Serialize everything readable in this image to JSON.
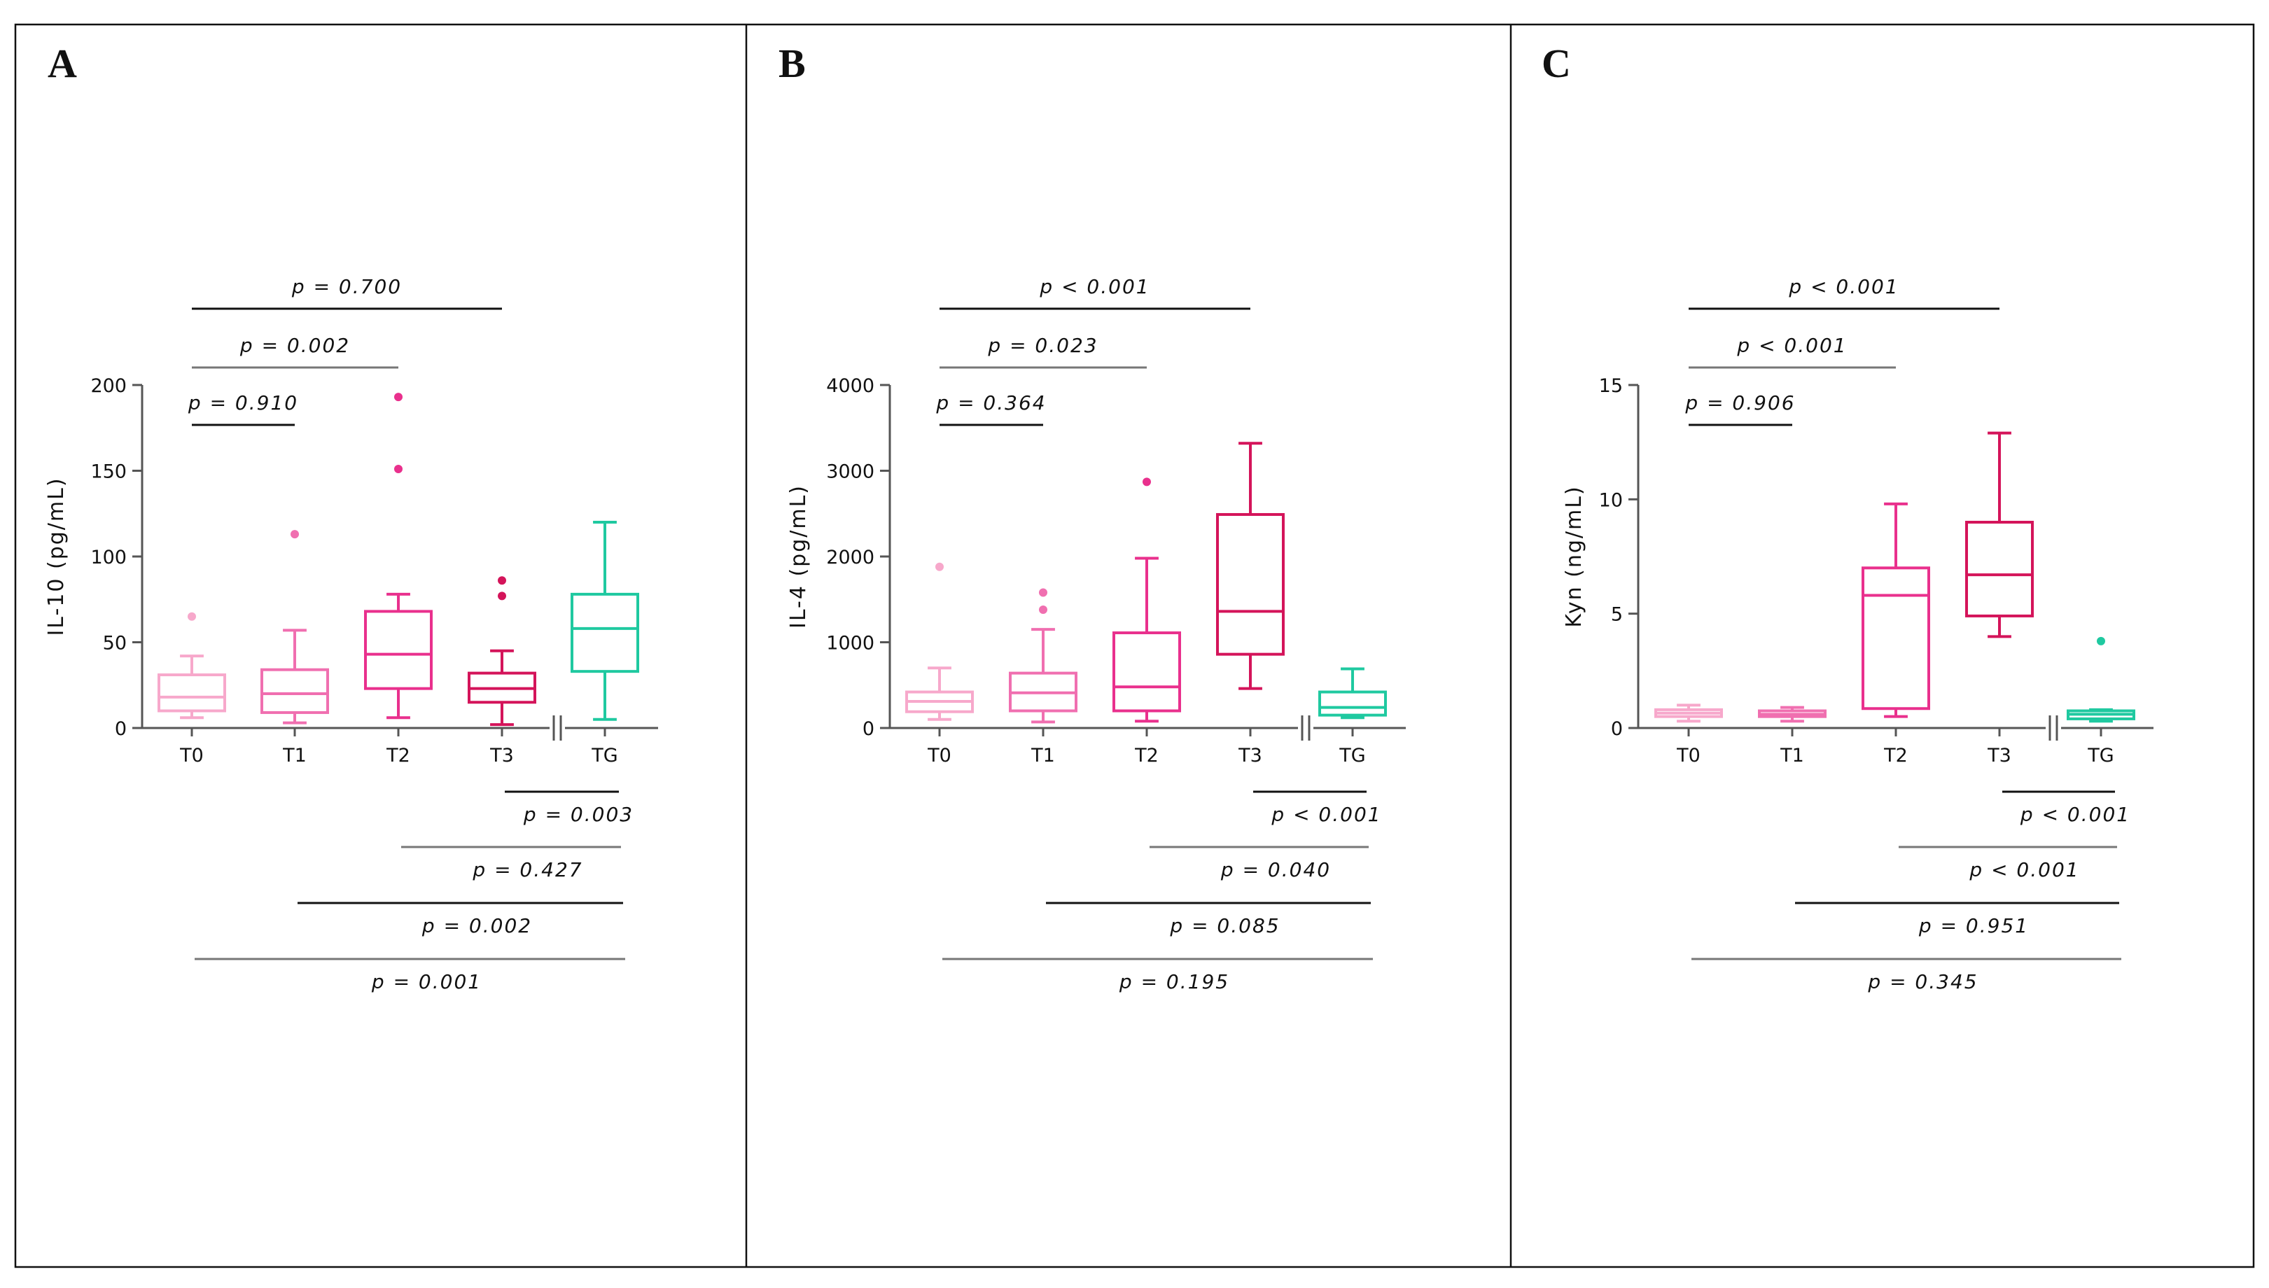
{
  "chart_data": [
    {
      "type": "box",
      "panel": "A",
      "ylabel": "IL-10 (pg/mL)",
      "ylim": [
        0,
        200
      ],
      "yticks": [
        "0",
        "50",
        "100",
        "150",
        "200"
      ],
      "ytick_values": [
        0,
        50,
        100,
        150,
        200
      ],
      "categories": [
        "T0",
        "T1",
        "T2",
        "T3",
        "TG"
      ],
      "boxes": [
        {
          "name": "T0",
          "color": "#f7a8cb",
          "whisker_low": 6,
          "q1": 10,
          "median": 18,
          "q3": 31,
          "whisker_high": 42,
          "outliers": [
            65
          ]
        },
        {
          "name": "T1",
          "color": "#f06fb0",
          "whisker_low": 3,
          "q1": 9,
          "median": 20,
          "q3": 34,
          "whisker_high": 57,
          "outliers": [
            113
          ]
        },
        {
          "name": "T2",
          "color": "#e9308d",
          "whisker_low": 6,
          "q1": 23,
          "median": 43,
          "q3": 68,
          "whisker_high": 78,
          "outliers": [
            151,
            193
          ]
        },
        {
          "name": "T3",
          "color": "#d4145a",
          "whisker_low": 2,
          "q1": 15,
          "median": 23,
          "q3": 32,
          "whisker_high": 45,
          "outliers": [
            77,
            86
          ]
        },
        {
          "name": "TG",
          "color": "#1fc9a0",
          "whisker_low": 5,
          "q1": 33,
          "median": 58,
          "q3": 78,
          "whisker_high": 120,
          "outliers": []
        }
      ],
      "comparisons_top": [
        {
          "text": "p = 0.700",
          "from": "T0",
          "to": "T3"
        },
        {
          "text": "p = 0.002",
          "from": "T0",
          "to": "T2"
        },
        {
          "text": "p = 0.910",
          "from": "T0",
          "to": "T1"
        }
      ],
      "comparisons_bottom": [
        {
          "text": "p = 0.003",
          "from": "T3",
          "to": "TG"
        },
        {
          "text": "p = 0.427",
          "from": "T2",
          "to": "TG"
        },
        {
          "text": "p = 0.002",
          "from": "T1",
          "to": "TG"
        },
        {
          "text": "p = 0.001",
          "from": "T0",
          "to": "TG"
        }
      ]
    },
    {
      "type": "box",
      "panel": "B",
      "ylabel": "IL-4 (pg/mL)",
      "ylim": [
        0,
        4000
      ],
      "yticks": [
        "0",
        "1000",
        "2000",
        "3000",
        "4000"
      ],
      "ytick_values": [
        0,
        1000,
        2000,
        3000,
        4000
      ],
      "categories": [
        "T0",
        "T1",
        "T2",
        "T3",
        "TG"
      ],
      "boxes": [
        {
          "name": "T0",
          "color": "#f7a8cb",
          "whisker_low": 100,
          "q1": 190,
          "median": 310,
          "q3": 420,
          "whisker_high": 700,
          "outliers": [
            1880
          ]
        },
        {
          "name": "T1",
          "color": "#f06fb0",
          "whisker_low": 70,
          "q1": 200,
          "median": 410,
          "q3": 640,
          "whisker_high": 1150,
          "outliers": [
            1380,
            1580
          ]
        },
        {
          "name": "T2",
          "color": "#e9308d",
          "whisker_low": 80,
          "q1": 200,
          "median": 480,
          "q3": 1110,
          "whisker_high": 1980,
          "outliers": [
            2870
          ]
        },
        {
          "name": "T3",
          "color": "#d4145a",
          "whisker_low": 460,
          "q1": 860,
          "median": 1360,
          "q3": 2490,
          "whisker_high": 3320,
          "outliers": []
        },
        {
          "name": "TG",
          "color": "#1fc9a0",
          "whisker_low": 120,
          "q1": 150,
          "median": 240,
          "q3": 420,
          "whisker_high": 690,
          "outliers": []
        }
      ],
      "comparisons_top": [
        {
          "text": "p < 0.001",
          "from": "T0",
          "to": "T3"
        },
        {
          "text": "p = 0.023",
          "from": "T0",
          "to": "T2"
        },
        {
          "text": "p = 0.364",
          "from": "T0",
          "to": "T1"
        }
      ],
      "comparisons_bottom": [
        {
          "text": "p < 0.001",
          "from": "T3",
          "to": "TG"
        },
        {
          "text": "p = 0.040",
          "from": "T2",
          "to": "TG"
        },
        {
          "text": "p = 0.085",
          "from": "T1",
          "to": "TG"
        },
        {
          "text": "p = 0.195",
          "from": "T0",
          "to": "TG"
        }
      ]
    },
    {
      "type": "box",
      "panel": "C",
      "ylabel": "Kyn (ng/mL)",
      "ylim": [
        0,
        15
      ],
      "yticks": [
        "0",
        "5",
        "10",
        "15"
      ],
      "ytick_values": [
        0,
        5,
        10,
        15
      ],
      "categories": [
        "T0",
        "T1",
        "T2",
        "T3",
        "TG"
      ],
      "boxes": [
        {
          "name": "T0",
          "color": "#f7a8cb",
          "whisker_low": 0.3,
          "q1": 0.5,
          "median": 0.65,
          "q3": 0.8,
          "whisker_high": 1.0,
          "outliers": []
        },
        {
          "name": "T1",
          "color": "#f06fb0",
          "whisker_low": 0.3,
          "q1": 0.5,
          "median": 0.6,
          "q3": 0.75,
          "whisker_high": 0.9,
          "outliers": []
        },
        {
          "name": "T2",
          "color": "#e9308d",
          "whisker_low": 0.5,
          "q1": 0.85,
          "median": 5.8,
          "q3": 7.0,
          "whisker_high": 9.8,
          "outliers": []
        },
        {
          "name": "T3",
          "color": "#d4145a",
          "whisker_low": 4.0,
          "q1": 4.9,
          "median": 6.7,
          "q3": 9.0,
          "whisker_high": 12.9,
          "outliers": []
        },
        {
          "name": "TG",
          "color": "#1fc9a0",
          "whisker_low": 0.3,
          "q1": 0.4,
          "median": 0.6,
          "q3": 0.75,
          "whisker_high": 0.8,
          "outliers": [
            3.8
          ]
        }
      ],
      "comparisons_top": [
        {
          "text": "p < 0.001",
          "from": "T0",
          "to": "T3"
        },
        {
          "text": "p < 0.001",
          "from": "T0",
          "to": "T2"
        },
        {
          "text": "p = 0.906",
          "from": "T0",
          "to": "T1"
        }
      ],
      "comparisons_bottom": [
        {
          "text": "p < 0.001",
          "from": "T3",
          "to": "TG"
        },
        {
          "text": "p < 0.001",
          "from": "T2",
          "to": "TG"
        },
        {
          "text": "p = 0.951",
          "from": "T1",
          "to": "TG"
        },
        {
          "text": "p = 0.345",
          "from": "T0",
          "to": "TG"
        }
      ]
    }
  ]
}
